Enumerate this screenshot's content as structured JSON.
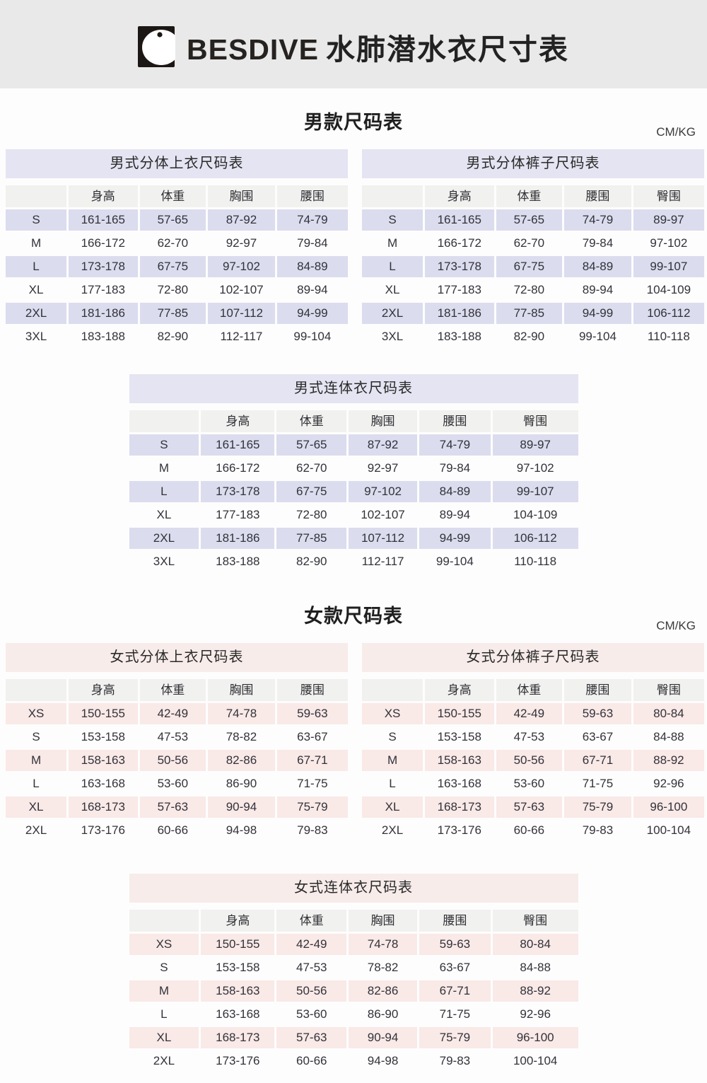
{
  "header": {
    "brand": "BESDIVE",
    "title": "水肺潜水衣尺寸表",
    "logo_icon": "fish-logo"
  },
  "colors": {
    "banner_bg": "#e9e9e9",
    "men_band": "#e4e4f2",
    "men_row_tint": "#dbdcee",
    "women_band": "#f7ecea",
    "women_row_tint": "#f9e9e7",
    "column_header_bg": "#f1f1ef",
    "text": "#32323a"
  },
  "men": {
    "section_title": "男款尺码表",
    "unit": "CM/KG",
    "tables": {
      "top": {
        "title": "男式分体上衣尺码表",
        "headers": [
          "",
          "身高",
          "体重",
          "胸围",
          "腰围"
        ],
        "rows": [
          [
            "S",
            "161-165",
            "57-65",
            "87-92",
            "74-79"
          ],
          [
            "M",
            "166-172",
            "62-70",
            "92-97",
            "79-84"
          ],
          [
            "L",
            "173-178",
            "67-75",
            "97-102",
            "84-89"
          ],
          [
            "XL",
            "177-183",
            "72-80",
            "102-107",
            "89-94"
          ],
          [
            "2XL",
            "181-186",
            "77-85",
            "107-112",
            "94-99"
          ],
          [
            "3XL",
            "183-188",
            "82-90",
            "112-117",
            "99-104"
          ]
        ]
      },
      "pants": {
        "title": "男式分体裤子尺码表",
        "headers": [
          "",
          "身高",
          "体重",
          "腰围",
          "臀围"
        ],
        "rows": [
          [
            "S",
            "161-165",
            "57-65",
            "74-79",
            "89-97"
          ],
          [
            "M",
            "166-172",
            "62-70",
            "79-84",
            "97-102"
          ],
          [
            "L",
            "173-178",
            "67-75",
            "84-89",
            "99-107"
          ],
          [
            "XL",
            "177-183",
            "72-80",
            "89-94",
            "104-109"
          ],
          [
            "2XL",
            "181-186",
            "77-85",
            "94-99",
            "106-112"
          ],
          [
            "3XL",
            "183-188",
            "82-90",
            "99-104",
            "110-118"
          ]
        ]
      },
      "onepiece": {
        "title": "男式连体衣尺码表",
        "headers": [
          "",
          "身高",
          "体重",
          "胸围",
          "腰围",
          "臀围"
        ],
        "rows": [
          [
            "S",
            "161-165",
            "57-65",
            "87-92",
            "74-79",
            "89-97"
          ],
          [
            "M",
            "166-172",
            "62-70",
            "92-97",
            "79-84",
            "97-102"
          ],
          [
            "L",
            "173-178",
            "67-75",
            "97-102",
            "84-89",
            "99-107"
          ],
          [
            "XL",
            "177-183",
            "72-80",
            "102-107",
            "89-94",
            "104-109"
          ],
          [
            "2XL",
            "181-186",
            "77-85",
            "107-112",
            "94-99",
            "106-112"
          ],
          [
            "3XL",
            "183-188",
            "82-90",
            "112-117",
            "99-104",
            "110-118"
          ]
        ]
      }
    }
  },
  "women": {
    "section_title": "女款尺码表",
    "unit": "CM/KG",
    "tables": {
      "top": {
        "title": "女式分体上衣尺码表",
        "headers": [
          "",
          "身高",
          "体重",
          "胸围",
          "腰围"
        ],
        "rows": [
          [
            "XS",
            "150-155",
            "42-49",
            "74-78",
            "59-63"
          ],
          [
            "S",
            "153-158",
            "47-53",
            "78-82",
            "63-67"
          ],
          [
            "M",
            "158-163",
            "50-56",
            "82-86",
            "67-71"
          ],
          [
            "L",
            "163-168",
            "53-60",
            "86-90",
            "71-75"
          ],
          [
            "XL",
            "168-173",
            "57-63",
            "90-94",
            "75-79"
          ],
          [
            "2XL",
            "173-176",
            "60-66",
            "94-98",
            "79-83"
          ]
        ]
      },
      "pants": {
        "title": "女式分体裤子尺码表",
        "headers": [
          "",
          "身高",
          "体重",
          "腰围",
          "臀围"
        ],
        "rows": [
          [
            "XS",
            "150-155",
            "42-49",
            "59-63",
            "80-84"
          ],
          [
            "S",
            "153-158",
            "47-53",
            "63-67",
            "84-88"
          ],
          [
            "M",
            "158-163",
            "50-56",
            "67-71",
            "88-92"
          ],
          [
            "L",
            "163-168",
            "53-60",
            "71-75",
            "92-96"
          ],
          [
            "XL",
            "168-173",
            "57-63",
            "75-79",
            "96-100"
          ],
          [
            "2XL",
            "173-176",
            "60-66",
            "79-83",
            "100-104"
          ]
        ]
      },
      "onepiece": {
        "title": "女式连体衣尺码表",
        "headers": [
          "",
          "身高",
          "体重",
          "胸围",
          "腰围",
          "臀围"
        ],
        "rows": [
          [
            "XS",
            "150-155",
            "42-49",
            "74-78",
            "59-63",
            "80-84"
          ],
          [
            "S",
            "153-158",
            "47-53",
            "78-82",
            "63-67",
            "84-88"
          ],
          [
            "M",
            "158-163",
            "50-56",
            "82-86",
            "67-71",
            "88-92"
          ],
          [
            "L",
            "163-168",
            "53-60",
            "86-90",
            "71-75",
            "92-96"
          ],
          [
            "XL",
            "168-173",
            "57-63",
            "90-94",
            "75-79",
            "96-100"
          ],
          [
            "2XL",
            "173-176",
            "60-66",
            "94-98",
            "79-83",
            "100-104"
          ]
        ]
      }
    }
  }
}
